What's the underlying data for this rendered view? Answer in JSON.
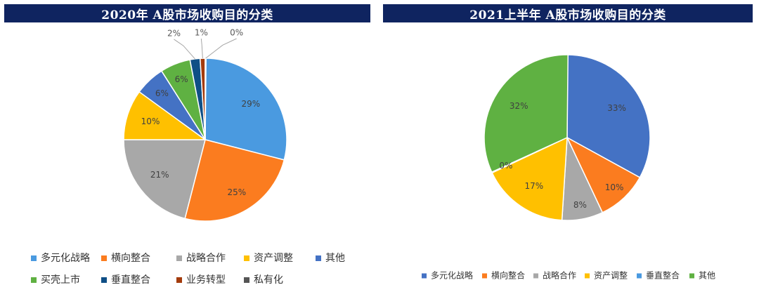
{
  "chart_data": [
    {
      "type": "pie",
      "title": "2020年 A股市场收购目的分类",
      "categories": [
        "多元化战略",
        "横向整合",
        "战略合作",
        "资产调整",
        "其他",
        "买壳上市",
        "垂直整合",
        "业务转型",
        "私有化"
      ],
      "values": [
        29,
        25,
        21,
        10,
        6,
        6,
        2,
        1,
        0
      ],
      "labels": [
        "29%",
        "25%",
        "21%",
        "10%",
        "6%",
        "6%",
        "2%",
        "1%",
        "0%"
      ],
      "colors": [
        "#4a9ae0",
        "#fb7c1f",
        "#a8a8a8",
        "#ffc000",
        "#4472c4",
        "#5fb142",
        "#0f4f86",
        "#a33b0c",
        "#555555"
      ],
      "legend_position": "bottom"
    },
    {
      "type": "pie",
      "title": "2021上半年 A股市场收购目的分类",
      "categories": [
        "多元化战略",
        "横向整合",
        "战略合作",
        "资产调整",
        "垂直整合",
        "其他"
      ],
      "values": [
        33,
        10,
        8,
        17,
        0,
        32
      ],
      "labels": [
        "33%",
        "10%",
        "8%",
        "17%",
        "0%",
        "32%"
      ],
      "colors": [
        "#4472c4",
        "#fb7c1f",
        "#a8a8a8",
        "#ffc000",
        "#4a9ae0",
        "#5fb142"
      ],
      "legend_position": "bottom"
    }
  ]
}
